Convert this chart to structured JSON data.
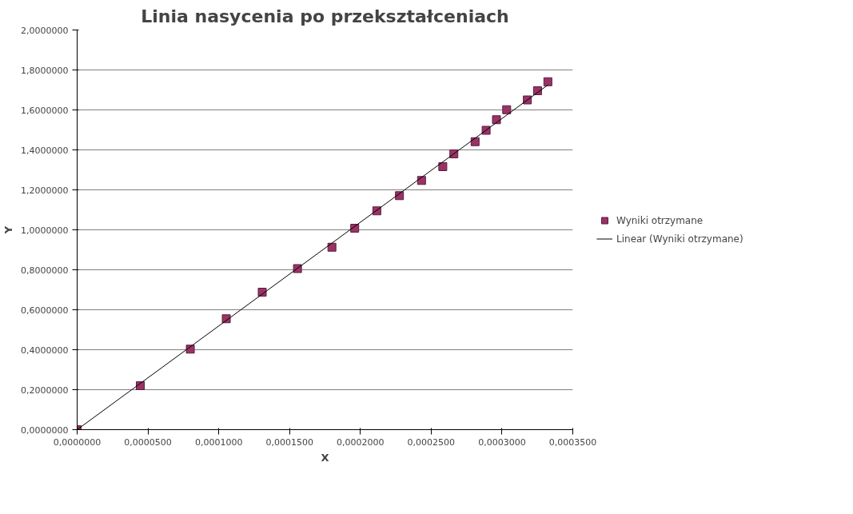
{
  "chart_data": {
    "type": "scatter",
    "title": "Linia nasycenia po przekształceniach",
    "xlabel": "X",
    "ylabel": "Y",
    "xlim": [
      0,
      0.00035
    ],
    "ylim": [
      0,
      2
    ],
    "xticks": [
      {
        "value": 0,
        "label": "0,0000000"
      },
      {
        "value": 5e-05,
        "label": "0,0000500"
      },
      {
        "value": 0.0001,
        "label": "0,0001000"
      },
      {
        "value": 0.00015,
        "label": "0,0001500"
      },
      {
        "value": 0.0002,
        "label": "0,0002000"
      },
      {
        "value": 0.00025,
        "label": "0,0002500"
      },
      {
        "value": 0.0003,
        "label": "0,0003000"
      },
      {
        "value": 0.00035,
        "label": "0,0003500"
      }
    ],
    "yticks": [
      {
        "value": 0,
        "label": "0,0000000"
      },
      {
        "value": 0.2,
        "label": "0,2000000"
      },
      {
        "value": 0.4,
        "label": "0,4000000"
      },
      {
        "value": 0.6,
        "label": "0,6000000"
      },
      {
        "value": 0.8,
        "label": "0,8000000"
      },
      {
        "value": 1,
        "label": "1,0000000"
      },
      {
        "value": 1.2,
        "label": "1,2000000"
      },
      {
        "value": 1.4,
        "label": "1,4000000"
      },
      {
        "value": 1.6,
        "label": "1,6000000"
      },
      {
        "value": 1.8,
        "label": "1,8000000"
      },
      {
        "value": 2,
        "label": "2,0000000"
      }
    ],
    "grid": "y",
    "legend": "right",
    "marker": "square",
    "series": [
      {
        "name": "Wyniki otrzymane",
        "color": "#993366",
        "x": [
          0,
          4.46e-05,
          7.99e-05,
          0.0001053,
          0.0001307,
          0.0001556,
          0.0001799,
          0.000196,
          0.0002116,
          0.0002276,
          0.0002432,
          0.0002582,
          0.000266,
          0.000281,
          0.0002888,
          0.0002961,
          0.0003033,
          0.0003179,
          0.0003251,
          0.0003324
        ],
        "values": [
          0,
          0.22,
          0.403,
          0.555,
          0.688,
          0.806,
          0.913,
          1.008,
          1.095,
          1.171,
          1.247,
          1.316,
          1.38,
          1.441,
          1.498,
          1.551,
          1.601,
          1.65,
          1.696,
          1.741
        ]
      },
      {
        "name": "Linear (Wyniki otrzymane)",
        "color": "#000000",
        "type": "line",
        "line_style": "solid",
        "marker": "none",
        "x": [
          0,
          0.0003324
        ],
        "values": [
          0,
          1.725
        ]
      }
    ]
  }
}
